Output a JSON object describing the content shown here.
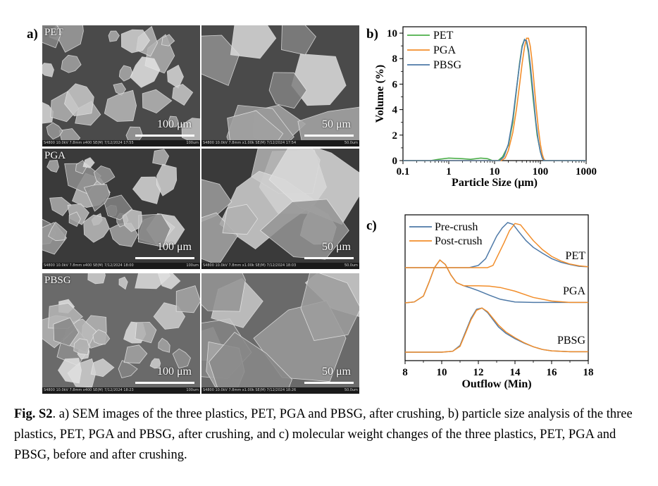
{
  "panels": {
    "a": {
      "letter": "a)",
      "images": [
        {
          "material": "PET",
          "scale": "100 μm",
          "info": "S4800 10.0kV 7.8mm x400 SE(M) 7/12/2024 17:55",
          "info_scale": "100um"
        },
        {
          "material": "",
          "scale": "50 μm",
          "info": "S4800 10.0kV 7.8mm x1.00k SE(M) 7/12/2024 17:54",
          "info_scale": "50.0um"
        },
        {
          "material": "PGA",
          "scale": "100 μm",
          "info": "S4800 10.0kV 7.8mm x400 SE(M) 7/12/2024 18:00",
          "info_scale": "100um"
        },
        {
          "material": "",
          "scale": "50 μm",
          "info": "S4800 10.0kV 7.8mm x1.00k SE(M) 7/12/2024 18:03",
          "info_scale": "50.0um"
        },
        {
          "material": "PBSG",
          "scale": "100 μm",
          "info": "S4800 10.0kV 7.8mm x400 SE(M) 7/12/2024 18:23",
          "info_scale": "100um"
        },
        {
          "material": "",
          "scale": "50 μm",
          "info": "S4800 10.0kV 7.8mm x1.00k SE(M) 7/12/2024 18:26",
          "info_scale": "50.0um"
        }
      ]
    },
    "b": {
      "letter": "b)"
    },
    "c": {
      "letter": "c)"
    }
  },
  "chart_data": [
    {
      "type": "line",
      "panel": "b",
      "title": "",
      "xlabel": "Particle Size (μm)",
      "ylabel": "Volume (%)",
      "xscale": "log",
      "xlim": [
        0.1,
        1000
      ],
      "ylim": [
        0,
        10.5
      ],
      "xticks": [
        "0.1",
        "1",
        "10",
        "100",
        "1000"
      ],
      "yticks": [
        "0",
        "2",
        "4",
        "6",
        "8",
        "10"
      ],
      "legend_position": "top-left",
      "series": [
        {
          "name": "PET",
          "color": "#4daf4a",
          "x": [
            0.1,
            0.4,
            0.6,
            1.0,
            2.0,
            3.0,
            5.0,
            7.0,
            9.0,
            12,
            15,
            20,
            25,
            30,
            35,
            40,
            45,
            50,
            55,
            60,
            70,
            85,
            100,
            110,
            120,
            140,
            200,
            1000
          ],
          "y": [
            0,
            0,
            0.1,
            0.2,
            0.15,
            0.1,
            0.2,
            0.15,
            0,
            0,
            0.3,
            1.2,
            3.0,
            5.5,
            7.6,
            9.0,
            9.5,
            9.3,
            8.5,
            7.2,
            4.8,
            2.0,
            0.7,
            0.2,
            0,
            0,
            0,
            0
          ]
        },
        {
          "name": "PGA",
          "color": "#f28e2b",
          "x": [
            0.1,
            10,
            14,
            17,
            20,
            25,
            30,
            35,
            40,
            45,
            50,
            55,
            60,
            65,
            70,
            80,
            90,
            100,
            110,
            120,
            130,
            150,
            1000
          ],
          "y": [
            0,
            0,
            0,
            0.2,
            0.8,
            2.2,
            4.0,
            5.9,
            7.6,
            8.9,
            9.6,
            9.6,
            9.0,
            8.0,
            6.8,
            4.4,
            2.6,
            1.3,
            0.5,
            0.1,
            0,
            0,
            0
          ]
        },
        {
          "name": "PBSG",
          "color": "#4e79a7",
          "x": [
            0.1,
            10,
            13,
            16,
            20,
            25,
            30,
            35,
            40,
            45,
            50,
            55,
            60,
            70,
            80,
            90,
            100,
            110,
            120,
            140,
            1000
          ],
          "y": [
            0,
            0,
            0,
            0.3,
            1.3,
            3.3,
            5.6,
            7.5,
            8.9,
            9.5,
            9.4,
            8.7,
            7.6,
            5.2,
            3.0,
            1.6,
            0.7,
            0.2,
            0,
            0,
            0
          ]
        }
      ]
    },
    {
      "type": "line",
      "panel": "c",
      "title": "",
      "xlabel": "Outflow (Min)",
      "ylabel": "",
      "xlim": [
        8,
        18
      ],
      "xticks": [
        "8",
        "10",
        "12",
        "14",
        "16",
        "18"
      ],
      "yaxis": "hidden",
      "legend_position": "top-left",
      "legend": [
        {
          "name": "Pre-crush",
          "color": "#4e79a7"
        },
        {
          "name": "Post-crush",
          "color": "#f28e2b"
        }
      ],
      "traces": [
        {
          "label": "PET",
          "name": "Pre-crush",
          "color": "#4e79a7",
          "offset": 2.0,
          "x": [
            8,
            10,
            11.5,
            12,
            12.4,
            12.7,
            13.0,
            13.3,
            13.6,
            13.9,
            14.2,
            14.6,
            15.0,
            15.5,
            16.0,
            16.5,
            17.0,
            17.5,
            18.0
          ],
          "y": [
            0,
            0,
            0,
            0.05,
            0.2,
            0.45,
            0.7,
            0.88,
            1.0,
            0.96,
            0.8,
            0.6,
            0.45,
            0.32,
            0.2,
            0.12,
            0.07,
            0.03,
            0.02
          ]
        },
        {
          "label": "PET",
          "name": "Post-crush",
          "color": "#f28e2b",
          "offset": 2.0,
          "x": [
            8,
            10,
            12.5,
            12.8,
            13.1,
            13.4,
            13.7,
            14.0,
            14.3,
            14.6,
            15.0,
            15.5,
            16.0,
            16.5,
            17.0,
            17.5,
            18.0
          ],
          "y": [
            0,
            0,
            0,
            0.05,
            0.3,
            0.55,
            0.82,
            0.98,
            0.95,
            0.8,
            0.6,
            0.4,
            0.25,
            0.15,
            0.08,
            0.04,
            0.02
          ]
        },
        {
          "label": "PGA",
          "name": "Pre-crush",
          "color": "#4e79a7",
          "offset": 1.0,
          "x": [
            8,
            8.5,
            9.0,
            9.3,
            9.6,
            9.9,
            10.2,
            10.5,
            10.8,
            11.2,
            11.6,
            12.0,
            12.6,
            13.2,
            14.0,
            15.0,
            16.0,
            17.0,
            18.0
          ],
          "y": [
            0,
            0.02,
            0.15,
            0.45,
            0.78,
            0.95,
            0.85,
            0.62,
            0.45,
            0.38,
            0.33,
            0.27,
            0.17,
            0.08,
            0.02,
            0.01,
            0.01,
            0.01,
            0.01
          ]
        },
        {
          "label": "PGA",
          "name": "Post-crush",
          "color": "#f28e2b",
          "offset": 1.0,
          "x": [
            8,
            8.5,
            9.0,
            9.3,
            9.6,
            9.9,
            10.2,
            10.5,
            10.8,
            11.2,
            11.6,
            12.0,
            12.6,
            13.2,
            14.0,
            15.0,
            16.0,
            17.0,
            18.0
          ],
          "y": [
            0,
            0.02,
            0.15,
            0.45,
            0.78,
            0.95,
            0.85,
            0.62,
            0.45,
            0.38,
            0.38,
            0.38,
            0.37,
            0.34,
            0.26,
            0.12,
            0.04,
            0.01,
            0.01
          ]
        },
        {
          "label": "PBSG",
          "name": "Pre-crush",
          "color": "#4e79a7",
          "offset": 0.0,
          "x": [
            8,
            10,
            10.6,
            11.0,
            11.3,
            11.6,
            11.9,
            12.2,
            12.5,
            12.8,
            13.1,
            13.5,
            14.0,
            14.5,
            15.0,
            15.5,
            16.0,
            17.0,
            18.0
          ],
          "y": [
            0,
            0,
            0.02,
            0.15,
            0.45,
            0.75,
            0.95,
            0.98,
            0.88,
            0.72,
            0.56,
            0.42,
            0.3,
            0.2,
            0.12,
            0.06,
            0.03,
            0.01,
            0.01
          ]
        },
        {
          "label": "PBSG",
          "name": "Post-crush",
          "color": "#f28e2b",
          "offset": 0.0,
          "x": [
            8,
            10,
            10.6,
            11.0,
            11.3,
            11.6,
            11.9,
            12.2,
            12.5,
            12.8,
            13.1,
            13.5,
            14.0,
            14.5,
            15.0,
            15.5,
            16.0,
            17.0,
            18.0
          ],
          "y": [
            0,
            0,
            0.02,
            0.13,
            0.42,
            0.72,
            0.93,
            0.98,
            0.9,
            0.75,
            0.6,
            0.45,
            0.32,
            0.21,
            0.12,
            0.06,
            0.03,
            0.01,
            0.01
          ]
        }
      ]
    }
  ],
  "caption": {
    "label": "Fig. S2",
    "text": ". a) SEM images of the three plastics, PET, PGA and PBSG, after crushing, b) particle size analysis of the three plastics, PET, PGA and PBSG, after crushing, and c) molecular weight changes of the three plastics, PET, PGA and PBSG, before and after crushing."
  }
}
